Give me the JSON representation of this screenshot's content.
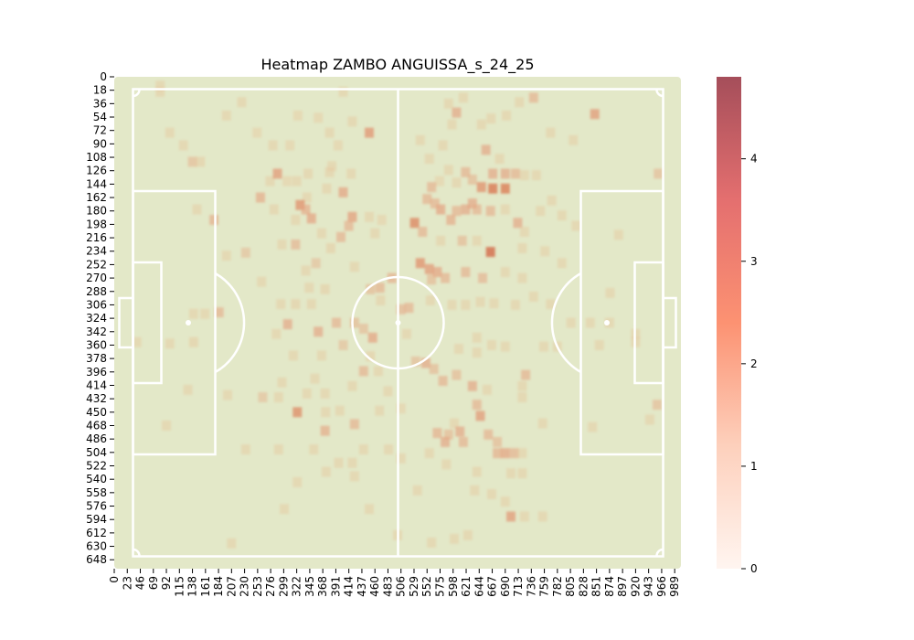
{
  "chart_data": {
    "type": "heatmap",
    "title": "Heatmap ZAMBO ANGUISSA_s_24_25",
    "xlabel": "",
    "ylabel": "",
    "x_range": [
      0,
      1000
    ],
    "y_range": [
      0,
      660
    ],
    "y_inverted": true,
    "x_ticks": [
      0,
      23,
      46,
      69,
      92,
      115,
      138,
      161,
      184,
      207,
      230,
      253,
      276,
      299,
      322,
      345,
      368,
      391,
      414,
      437,
      460,
      483,
      506,
      529,
      552,
      575,
      598,
      621,
      644,
      667,
      690,
      713,
      736,
      759,
      782,
      805,
      828,
      851,
      874,
      897,
      920,
      943,
      966,
      989
    ],
    "y_ticks": [
      0,
      18,
      36,
      54,
      72,
      90,
      108,
      126,
      144,
      162,
      180,
      198,
      216,
      234,
      252,
      270,
      288,
      306,
      324,
      342,
      360,
      378,
      396,
      414,
      432,
      450,
      468,
      486,
      504,
      522,
      540,
      558,
      576,
      594,
      612,
      630,
      648
    ],
    "colorbar": {
      "min": 0,
      "max": 4.8,
      "ticks": [
        0,
        1,
        2,
        3,
        4
      ]
    },
    "pitch_color": "#e3e8c8",
    "line_color": "#ffffff",
    "colors": {
      "low": "#fff5f0",
      "mid": "#fc9272",
      "high": "#a54e5a"
    },
    "grid": false,
    "cells": [
      {
        "x": 81,
        "y": 20,
        "v": 0.7
      },
      {
        "x": 81,
        "y": 12,
        "v": 0.6
      },
      {
        "x": 404,
        "y": 20,
        "v": 0.6
      },
      {
        "x": 225,
        "y": 34,
        "v": 0.6
      },
      {
        "x": 198,
        "y": 52,
        "v": 0.6
      },
      {
        "x": 324,
        "y": 52,
        "v": 0.5
      },
      {
        "x": 360,
        "y": 55,
        "v": 0.5
      },
      {
        "x": 420,
        "y": 60,
        "v": 0.6
      },
      {
        "x": 450,
        "y": 75,
        "v": 2.3
      },
      {
        "x": 98,
        "y": 75,
        "v": 0.6
      },
      {
        "x": 252,
        "y": 75,
        "v": 0.5
      },
      {
        "x": 380,
        "y": 75,
        "v": 0.6
      },
      {
        "x": 122,
        "y": 92,
        "v": 0.6
      },
      {
        "x": 280,
        "y": 92,
        "v": 0.6
      },
      {
        "x": 310,
        "y": 92,
        "v": 0.5
      },
      {
        "x": 395,
        "y": 92,
        "v": 0.5
      },
      {
        "x": 138,
        "y": 114,
        "v": 1.3
      },
      {
        "x": 152,
        "y": 114,
        "v": 0.7
      },
      {
        "x": 380,
        "y": 128,
        "v": 0.6
      },
      {
        "x": 275,
        "y": 140,
        "v": 0.6
      },
      {
        "x": 305,
        "y": 140,
        "v": 0.5
      },
      {
        "x": 322,
        "y": 140,
        "v": 0.6
      },
      {
        "x": 384,
        "y": 120,
        "v": 0.6
      },
      {
        "x": 288,
        "y": 130,
        "v": 2.2
      },
      {
        "x": 342,
        "y": 130,
        "v": 0.6
      },
      {
        "x": 418,
        "y": 130,
        "v": 0.6
      },
      {
        "x": 375,
        "y": 150,
        "v": 0.6
      },
      {
        "x": 258,
        "y": 162,
        "v": 1.8
      },
      {
        "x": 340,
        "y": 162,
        "v": 0.6
      },
      {
        "x": 404,
        "y": 155,
        "v": 2.0
      },
      {
        "x": 328,
        "y": 172,
        "v": 2.4
      },
      {
        "x": 338,
        "y": 178,
        "v": 1.8
      },
      {
        "x": 348,
        "y": 190,
        "v": 2.0
      },
      {
        "x": 420,
        "y": 188,
        "v": 2.1
      },
      {
        "x": 414,
        "y": 200,
        "v": 1.6
      },
      {
        "x": 176,
        "y": 192,
        "v": 1.7
      },
      {
        "x": 146,
        "y": 178,
        "v": 0.6
      },
      {
        "x": 282,
        "y": 178,
        "v": 0.6
      },
      {
        "x": 320,
        "y": 192,
        "v": 0.6
      },
      {
        "x": 450,
        "y": 188,
        "v": 0.6
      },
      {
        "x": 472,
        "y": 192,
        "v": 0.5
      },
      {
        "x": 460,
        "y": 210,
        "v": 0.6
      },
      {
        "x": 400,
        "y": 215,
        "v": 1.6
      },
      {
        "x": 366,
        "y": 210,
        "v": 0.6
      },
      {
        "x": 296,
        "y": 225,
        "v": 0.6
      },
      {
        "x": 320,
        "y": 225,
        "v": 1.5
      },
      {
        "x": 382,
        "y": 230,
        "v": 0.7
      },
      {
        "x": 232,
        "y": 236,
        "v": 1.2
      },
      {
        "x": 198,
        "y": 240,
        "v": 0.6
      },
      {
        "x": 338,
        "y": 260,
        "v": 0.6
      },
      {
        "x": 356,
        "y": 250,
        "v": 1.2
      },
      {
        "x": 424,
        "y": 255,
        "v": 0.6
      },
      {
        "x": 260,
        "y": 275,
        "v": 0.6
      },
      {
        "x": 344,
        "y": 283,
        "v": 0.6
      },
      {
        "x": 372,
        "y": 285,
        "v": 0.7
      },
      {
        "x": 452,
        "y": 285,
        "v": 1.4
      },
      {
        "x": 490,
        "y": 270,
        "v": 1.7
      },
      {
        "x": 469,
        "y": 283,
        "v": 1.6
      },
      {
        "x": 470,
        "y": 300,
        "v": 0.6
      },
      {
        "x": 294,
        "y": 305,
        "v": 0.6
      },
      {
        "x": 320,
        "y": 305,
        "v": 0.7
      },
      {
        "x": 348,
        "y": 305,
        "v": 0.6
      },
      {
        "x": 185,
        "y": 316,
        "v": 1.6
      },
      {
        "x": 140,
        "y": 318,
        "v": 0.6
      },
      {
        "x": 160,
        "y": 318,
        "v": 0.6
      },
      {
        "x": 520,
        "y": 310,
        "v": 1.6
      },
      {
        "x": 506,
        "y": 312,
        "v": 1.5
      },
      {
        "x": 558,
        "y": 300,
        "v": 0.6
      },
      {
        "x": 306,
        "y": 332,
        "v": 1.9
      },
      {
        "x": 286,
        "y": 345,
        "v": 0.6
      },
      {
        "x": 360,
        "y": 342,
        "v": 1.9
      },
      {
        "x": 392,
        "y": 330,
        "v": 1.6
      },
      {
        "x": 424,
        "y": 330,
        "v": 1.4
      },
      {
        "x": 440,
        "y": 338,
        "v": 1.3
      },
      {
        "x": 456,
        "y": 350,
        "v": 2.0
      },
      {
        "x": 404,
        "y": 360,
        "v": 1.2
      },
      {
        "x": 452,
        "y": 375,
        "v": 0.7
      },
      {
        "x": 516,
        "y": 345,
        "v": 0.6
      },
      {
        "x": 40,
        "y": 356,
        "v": 0.6
      },
      {
        "x": 98,
        "y": 358,
        "v": 0.6
      },
      {
        "x": 140,
        "y": 356,
        "v": 0.7
      },
      {
        "x": 316,
        "y": 374,
        "v": 0.6
      },
      {
        "x": 366,
        "y": 374,
        "v": 0.6
      },
      {
        "x": 440,
        "y": 395,
        "v": 1.6
      },
      {
        "x": 420,
        "y": 415,
        "v": 0.6
      },
      {
        "x": 296,
        "y": 410,
        "v": 0.6
      },
      {
        "x": 354,
        "y": 405,
        "v": 0.6
      },
      {
        "x": 466,
        "y": 395,
        "v": 0.6
      },
      {
        "x": 483,
        "y": 422,
        "v": 0.6
      },
      {
        "x": 506,
        "y": 445,
        "v": 0.5
      },
      {
        "x": 130,
        "y": 420,
        "v": 0.6
      },
      {
        "x": 200,
        "y": 427,
        "v": 0.6
      },
      {
        "x": 262,
        "y": 430,
        "v": 1.2
      },
      {
        "x": 290,
        "y": 430,
        "v": 0.6
      },
      {
        "x": 340,
        "y": 425,
        "v": 0.6
      },
      {
        "x": 372,
        "y": 425,
        "v": 0.6
      },
      {
        "x": 398,
        "y": 448,
        "v": 0.6
      },
      {
        "x": 468,
        "y": 448,
        "v": 0.6
      },
      {
        "x": 323,
        "y": 450,
        "v": 2.5
      },
      {
        "x": 373,
        "y": 450,
        "v": 0.6
      },
      {
        "x": 92,
        "y": 468,
        "v": 0.6
      },
      {
        "x": 424,
        "y": 466,
        "v": 1.6
      },
      {
        "x": 372,
        "y": 475,
        "v": 1.8
      },
      {
        "x": 440,
        "y": 500,
        "v": 0.6
      },
      {
        "x": 484,
        "y": 500,
        "v": 0.6
      },
      {
        "x": 232,
        "y": 500,
        "v": 0.6
      },
      {
        "x": 290,
        "y": 500,
        "v": 0.6
      },
      {
        "x": 352,
        "y": 500,
        "v": 0.6
      },
      {
        "x": 396,
        "y": 518,
        "v": 0.6
      },
      {
        "x": 420,
        "y": 518,
        "v": 0.6
      },
      {
        "x": 506,
        "y": 512,
        "v": 0.6
      },
      {
        "x": 323,
        "y": 544,
        "v": 0.6
      },
      {
        "x": 374,
        "y": 530,
        "v": 0.6
      },
      {
        "x": 424,
        "y": 536,
        "v": 0.6
      },
      {
        "x": 300,
        "y": 580,
        "v": 0.6
      },
      {
        "x": 450,
        "y": 580,
        "v": 0.6
      },
      {
        "x": 535,
        "y": 555,
        "v": 0.6
      },
      {
        "x": 500,
        "y": 615,
        "v": 0.6
      },
      {
        "x": 207,
        "y": 626,
        "v": 0.6
      },
      {
        "x": 616,
        "y": 28,
        "v": 0.6
      },
      {
        "x": 604,
        "y": 48,
        "v": 1.9
      },
      {
        "x": 590,
        "y": 36,
        "v": 0.6
      },
      {
        "x": 596,
        "y": 64,
        "v": 0.6
      },
      {
        "x": 648,
        "y": 64,
        "v": 0.6
      },
      {
        "x": 665,
        "y": 56,
        "v": 0.6
      },
      {
        "x": 692,
        "y": 52,
        "v": 0.6
      },
      {
        "x": 715,
        "y": 34,
        "v": 0.6
      },
      {
        "x": 740,
        "y": 28,
        "v": 1.6
      },
      {
        "x": 848,
        "y": 50,
        "v": 2.2
      },
      {
        "x": 770,
        "y": 75,
        "v": 0.6
      },
      {
        "x": 810,
        "y": 85,
        "v": 0.6
      },
      {
        "x": 540,
        "y": 85,
        "v": 0.6
      },
      {
        "x": 580,
        "y": 92,
        "v": 0.6
      },
      {
        "x": 656,
        "y": 98,
        "v": 1.9
      },
      {
        "x": 680,
        "y": 110,
        "v": 0.6
      },
      {
        "x": 556,
        "y": 110,
        "v": 0.6
      },
      {
        "x": 620,
        "y": 128,
        "v": 1.6
      },
      {
        "x": 632,
        "y": 138,
        "v": 1.4
      },
      {
        "x": 604,
        "y": 142,
        "v": 0.6
      },
      {
        "x": 590,
        "y": 125,
        "v": 0.6
      },
      {
        "x": 574,
        "y": 140,
        "v": 0.5
      },
      {
        "x": 668,
        "y": 130,
        "v": 1.9
      },
      {
        "x": 690,
        "y": 130,
        "v": 1.9
      },
      {
        "x": 708,
        "y": 130,
        "v": 1.6
      },
      {
        "x": 724,
        "y": 132,
        "v": 0.6
      },
      {
        "x": 745,
        "y": 132,
        "v": 0.6
      },
      {
        "x": 960,
        "y": 130,
        "v": 1.3
      },
      {
        "x": 648,
        "y": 148,
        "v": 2.4
      },
      {
        "x": 668,
        "y": 150,
        "v": 2.9
      },
      {
        "x": 690,
        "y": 150,
        "v": 2.8
      },
      {
        "x": 560,
        "y": 148,
        "v": 1.6
      },
      {
        "x": 552,
        "y": 164,
        "v": 1.6
      },
      {
        "x": 632,
        "y": 170,
        "v": 1.9
      },
      {
        "x": 620,
        "y": 178,
        "v": 1.9
      },
      {
        "x": 640,
        "y": 178,
        "v": 1.6
      },
      {
        "x": 576,
        "y": 178,
        "v": 2.0
      },
      {
        "x": 566,
        "y": 170,
        "v": 1.6
      },
      {
        "x": 594,
        "y": 192,
        "v": 1.8
      },
      {
        "x": 604,
        "y": 180,
        "v": 1.6
      },
      {
        "x": 530,
        "y": 196,
        "v": 2.6
      },
      {
        "x": 544,
        "y": 208,
        "v": 1.6
      },
      {
        "x": 664,
        "y": 180,
        "v": 1.6
      },
      {
        "x": 690,
        "y": 178,
        "v": 0.6
      },
      {
        "x": 712,
        "y": 196,
        "v": 1.9
      },
      {
        "x": 724,
        "y": 208,
        "v": 0.6
      },
      {
        "x": 752,
        "y": 180,
        "v": 0.6
      },
      {
        "x": 772,
        "y": 166,
        "v": 0.6
      },
      {
        "x": 790,
        "y": 186,
        "v": 0.6
      },
      {
        "x": 815,
        "y": 200,
        "v": 0.6
      },
      {
        "x": 664,
        "y": 235,
        "v": 3.2
      },
      {
        "x": 640,
        "y": 220,
        "v": 0.6
      },
      {
        "x": 614,
        "y": 220,
        "v": 1.4
      },
      {
        "x": 576,
        "y": 220,
        "v": 0.6
      },
      {
        "x": 720,
        "y": 230,
        "v": 0.6
      },
      {
        "x": 760,
        "y": 234,
        "v": 0.6
      },
      {
        "x": 790,
        "y": 250,
        "v": 0.6
      },
      {
        "x": 890,
        "y": 212,
        "v": 0.6
      },
      {
        "x": 540,
        "y": 250,
        "v": 2.4
      },
      {
        "x": 556,
        "y": 258,
        "v": 2.2
      },
      {
        "x": 570,
        "y": 262,
        "v": 2.0
      },
      {
        "x": 584,
        "y": 270,
        "v": 1.6
      },
      {
        "x": 560,
        "y": 272,
        "v": 1.4
      },
      {
        "x": 620,
        "y": 262,
        "v": 1.6
      },
      {
        "x": 650,
        "y": 270,
        "v": 1.5
      },
      {
        "x": 690,
        "y": 262,
        "v": 0.6
      },
      {
        "x": 720,
        "y": 270,
        "v": 0.6
      },
      {
        "x": 740,
        "y": 295,
        "v": 0.6
      },
      {
        "x": 770,
        "y": 305,
        "v": 0.6
      },
      {
        "x": 875,
        "y": 290,
        "v": 0.6
      },
      {
        "x": 596,
        "y": 306,
        "v": 0.6
      },
      {
        "x": 620,
        "y": 306,
        "v": 0.6
      },
      {
        "x": 646,
        "y": 302,
        "v": 0.6
      },
      {
        "x": 670,
        "y": 304,
        "v": 0.6
      },
      {
        "x": 708,
        "y": 306,
        "v": 0.6
      },
      {
        "x": 806,
        "y": 330,
        "v": 0.6
      },
      {
        "x": 840,
        "y": 330,
        "v": 0.6
      },
      {
        "x": 874,
        "y": 330,
        "v": 0.6
      },
      {
        "x": 920,
        "y": 345,
        "v": 0.6
      },
      {
        "x": 920,
        "y": 356,
        "v": 0.6
      },
      {
        "x": 550,
        "y": 384,
        "v": 1.9
      },
      {
        "x": 564,
        "y": 392,
        "v": 1.4
      },
      {
        "x": 532,
        "y": 382,
        "v": 1.3
      },
      {
        "x": 608,
        "y": 365,
        "v": 0.6
      },
      {
        "x": 640,
        "y": 350,
        "v": 0.6
      },
      {
        "x": 640,
        "y": 370,
        "v": 0.6
      },
      {
        "x": 666,
        "y": 360,
        "v": 0.6
      },
      {
        "x": 690,
        "y": 362,
        "v": 0.6
      },
      {
        "x": 758,
        "y": 362,
        "v": 0.6
      },
      {
        "x": 782,
        "y": 362,
        "v": 0.6
      },
      {
        "x": 856,
        "y": 360,
        "v": 0.6
      },
      {
        "x": 604,
        "y": 400,
        "v": 1.4
      },
      {
        "x": 580,
        "y": 408,
        "v": 1.6
      },
      {
        "x": 632,
        "y": 415,
        "v": 1.9
      },
      {
        "x": 658,
        "y": 420,
        "v": 0.6
      },
      {
        "x": 726,
        "y": 400,
        "v": 1.6
      },
      {
        "x": 720,
        "y": 415,
        "v": 0.6
      },
      {
        "x": 720,
        "y": 430,
        "v": 0.6
      },
      {
        "x": 958,
        "y": 440,
        "v": 1.3
      },
      {
        "x": 945,
        "y": 460,
        "v": 0.6
      },
      {
        "x": 646,
        "y": 455,
        "v": 2.2
      },
      {
        "x": 640,
        "y": 440,
        "v": 1.6
      },
      {
        "x": 600,
        "y": 465,
        "v": 0.6
      },
      {
        "x": 590,
        "y": 480,
        "v": 1.4
      },
      {
        "x": 610,
        "y": 476,
        "v": 1.9
      },
      {
        "x": 570,
        "y": 478,
        "v": 1.7
      },
      {
        "x": 584,
        "y": 490,
        "v": 1.9
      },
      {
        "x": 616,
        "y": 490,
        "v": 1.6
      },
      {
        "x": 660,
        "y": 480,
        "v": 1.6
      },
      {
        "x": 676,
        "y": 490,
        "v": 1.4
      },
      {
        "x": 690,
        "y": 505,
        "v": 2.0
      },
      {
        "x": 706,
        "y": 505,
        "v": 1.6
      },
      {
        "x": 676,
        "y": 505,
        "v": 1.7
      },
      {
        "x": 720,
        "y": 505,
        "v": 0.6
      },
      {
        "x": 556,
        "y": 505,
        "v": 0.6
      },
      {
        "x": 756,
        "y": 465,
        "v": 0.6
      },
      {
        "x": 844,
        "y": 470,
        "v": 0.6
      },
      {
        "x": 586,
        "y": 520,
        "v": 0.6
      },
      {
        "x": 640,
        "y": 530,
        "v": 0.6
      },
      {
        "x": 700,
        "y": 532,
        "v": 0.6
      },
      {
        "x": 720,
        "y": 532,
        "v": 0.6
      },
      {
        "x": 636,
        "y": 555,
        "v": 0.6
      },
      {
        "x": 666,
        "y": 560,
        "v": 0.6
      },
      {
        "x": 690,
        "y": 570,
        "v": 0.6
      },
      {
        "x": 700,
        "y": 590,
        "v": 2.2
      },
      {
        "x": 724,
        "y": 590,
        "v": 0.6
      },
      {
        "x": 756,
        "y": 590,
        "v": 0.6
      },
      {
        "x": 600,
        "y": 620,
        "v": 0.6
      },
      {
        "x": 624,
        "y": 615,
        "v": 0.6
      },
      {
        "x": 560,
        "y": 625,
        "v": 0.6
      }
    ]
  }
}
